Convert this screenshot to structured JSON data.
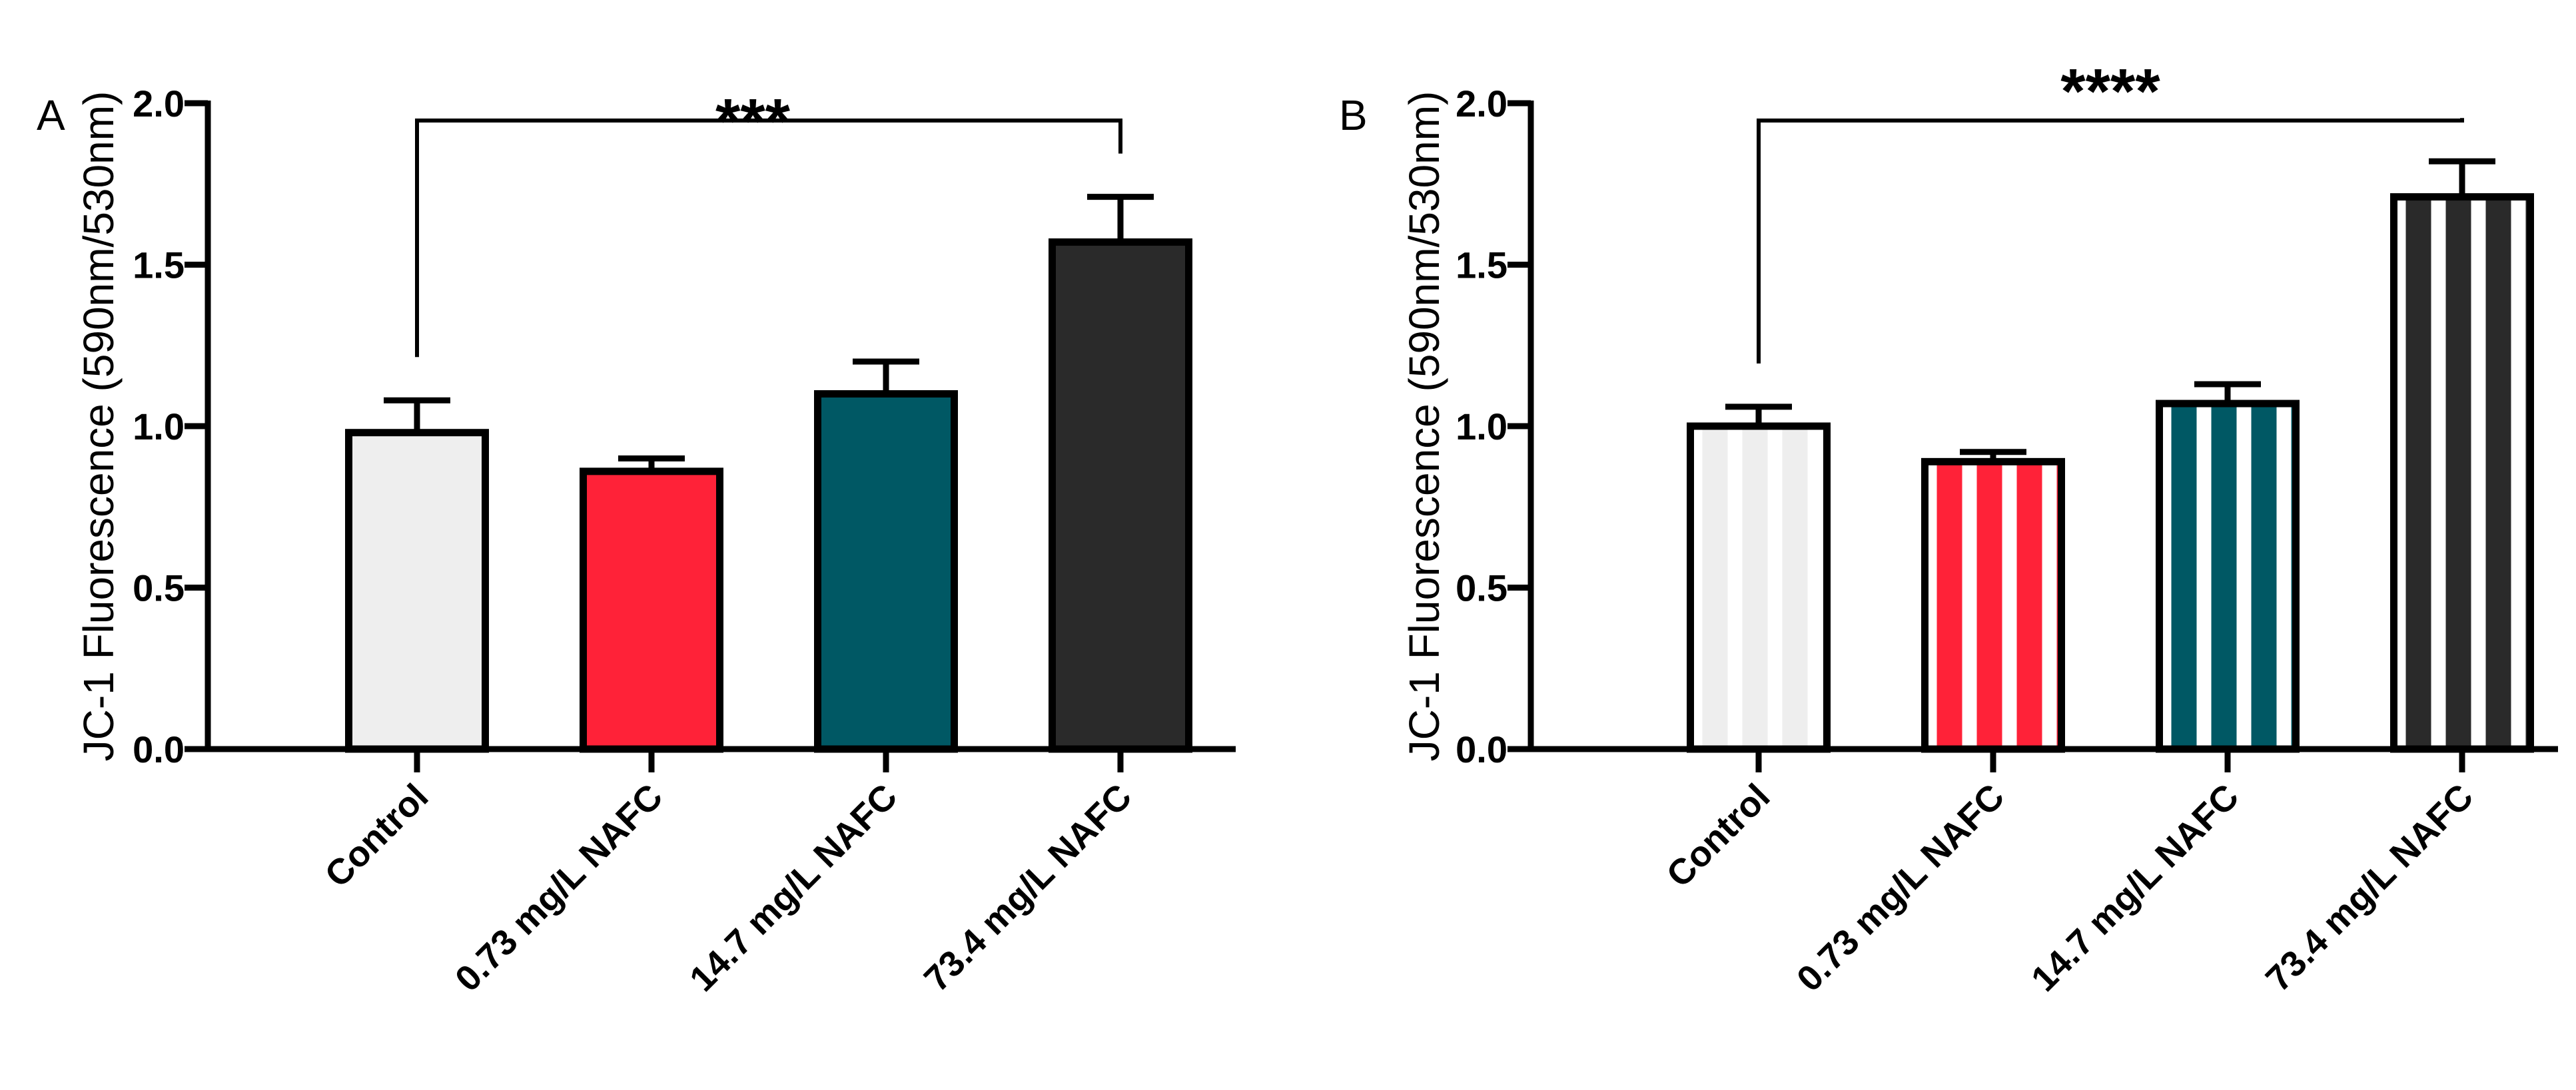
{
  "chart_data": [
    {
      "panel": "A",
      "type": "bar",
      "ylabel": "JC-1 Fluorescence (590nm/530nm)",
      "ylim": [
        0,
        2.0
      ],
      "yticks": [
        "0.0",
        "0.5",
        "1.0",
        "1.5",
        "2.0"
      ],
      "categories": [
        "Control",
        "0.73 mg/L NAFC",
        "14.7 mg/L NAFC",
        "73.4 mg/L NAFC"
      ],
      "values": [
        0.98,
        0.86,
        1.1,
        1.57
      ],
      "errors": [
        0.1,
        0.04,
        0.1,
        0.14
      ],
      "colors": [
        "#eeeeee",
        "#ff2238",
        "#005864",
        "#2a2a2a"
      ],
      "pattern": "solid",
      "significance": {
        "from": 0,
        "to": 3,
        "label": "***"
      }
    },
    {
      "panel": "B",
      "type": "bar",
      "ylabel": "JC-1 Fluorescence (590nm/530nm)",
      "ylim": [
        0,
        2.0
      ],
      "yticks": [
        "0.0",
        "0.5",
        "1.0",
        "1.5",
        "2.0"
      ],
      "categories": [
        "Control",
        "0.73 mg/L NAFC",
        "14.7 mg/L NAFC",
        "73.4 mg/L NAFC"
      ],
      "values": [
        1.0,
        0.89,
        1.07,
        1.71
      ],
      "errors": [
        0.06,
        0.03,
        0.06,
        0.11
      ],
      "colors": [
        "#eeeeee",
        "#ff2238",
        "#005864",
        "#2a2a2a"
      ],
      "pattern": "striped",
      "significance": {
        "from": 0,
        "to": 3,
        "label": "****"
      }
    }
  ]
}
